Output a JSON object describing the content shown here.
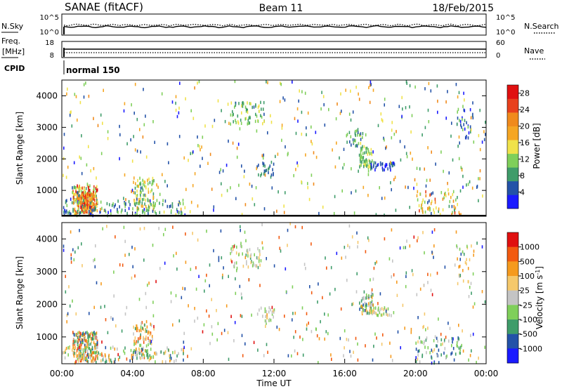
{
  "header": {
    "station": "SANAE (fitACF)",
    "beam": "Beam 11",
    "date": "18/Feb/2015"
  },
  "noise_panel": {
    "left_label": "N.Sky",
    "left_ticks": [
      "10^5",
      "10^0"
    ],
    "right_ticks": [
      "10^5",
      "10^0"
    ],
    "right_label": "N.Search"
  },
  "freq_panel": {
    "left_label_top": "Freq.",
    "left_label_unit": "[MHz]",
    "left_ticks": [
      "18",
      "8"
    ],
    "right_ticks": [
      "60",
      "0"
    ],
    "right_label": "Nave"
  },
  "cpid_panel": {
    "label": "CPID",
    "program": "normal 150"
  },
  "x_axis": {
    "ticks": [
      "00:00",
      "04:00",
      "08:00",
      "12:00",
      "16:00",
      "20:00",
      "00:00"
    ],
    "label": "Time UT"
  },
  "colors": {
    "power_scale": [
      "#1a1aff",
      "#2352a8",
      "#3f9c6a",
      "#7fcf5a",
      "#f0e24a",
      "#f5a623",
      "#f08a1c",
      "#e8401c",
      "#e01010"
    ],
    "velocity_scale": [
      "#e01010",
      "#f25a10",
      "#f59a1e",
      "#f5c86b",
      "#c4c4c4",
      "#7fcf5a",
      "#3f9c6a",
      "#2352a8",
      "#1a1aff"
    ]
  },
  "chart_data": [
    {
      "type": "heatmap",
      "title": "",
      "xlabel": "",
      "ylabel": "Slant Range [km]",
      "xlim": [
        0,
        24
      ],
      "ylim": [
        180,
        4500
      ],
      "yticks": [
        "1000",
        "2000",
        "3000",
        "4000"
      ],
      "colorbar": {
        "label": "Power [dB]",
        "ticks": [
          "4",
          "8",
          "12",
          "16",
          "20",
          "24",
          "28"
        ],
        "range": [
          0,
          30
        ]
      },
      "clusters": [
        {
          "t": [
            0.6,
            2.0
          ],
          "r": [
            250,
            1150
          ],
          "v": [
            6,
            30
          ],
          "n": 220
        },
        {
          "t": [
            1.0,
            1.8
          ],
          "r": [
            400,
            900
          ],
          "v": [
            18,
            28
          ],
          "n": 80
        },
        {
          "t": [
            4.0,
            5.2
          ],
          "r": [
            350,
            1400
          ],
          "v": [
            6,
            20
          ],
          "n": 90
        },
        {
          "t": [
            0.0,
            7.0
          ],
          "r": [
            200,
            700
          ],
          "v": [
            2,
            14
          ],
          "n": 120
        },
        {
          "t": [
            9.5,
            11.5
          ],
          "r": [
            3100,
            3800
          ],
          "v": [
            6,
            16
          ],
          "n": 60
        },
        {
          "t": [
            11.0,
            12.0
          ],
          "r": [
            1400,
            1900
          ],
          "v": [
            4,
            10
          ],
          "n": 25
        },
        {
          "t": [
            16.0,
            17.0
          ],
          "r": [
            2400,
            2950
          ],
          "v": [
            4,
            14
          ],
          "n": 30
        },
        {
          "t": [
            16.8,
            17.6
          ],
          "r": [
            1700,
            2400
          ],
          "v": [
            8,
            16
          ],
          "n": 60
        },
        {
          "t": [
            17.4,
            18.8
          ],
          "r": [
            1650,
            1900
          ],
          "v": [
            2,
            8
          ],
          "n": 40
        },
        {
          "t": [
            20.0,
            22.6
          ],
          "r": [
            200,
            1000
          ],
          "v": [
            4,
            26
          ],
          "n": 70
        },
        {
          "t": [
            22.3,
            23.3
          ],
          "r": [
            2500,
            3800
          ],
          "v": [
            2,
            12
          ],
          "n": 30
        },
        {
          "t": [
            0.0,
            24.0
          ],
          "r": [
            200,
            4500
          ],
          "v": [
            2,
            22
          ],
          "n": 420
        }
      ]
    },
    {
      "type": "heatmap",
      "title": "",
      "xlabel": "Time UT",
      "ylabel": "Slant Range [km]",
      "xlim": [
        0,
        24
      ],
      "ylim": [
        180,
        4500
      ],
      "yticks": [
        "1000",
        "2000",
        "3000",
        "4000"
      ],
      "colorbar": {
        "label": "Velocity [m s^-1]",
        "ticks": [
          "1000",
          "500",
          "100",
          "25",
          "-25",
          "-100",
          "-500",
          "-1000"
        ],
        "range": [
          -1200,
          1200
        ]
      },
      "clusters": [
        {
          "t": [
            0.6,
            2.0
          ],
          "r": [
            250,
            1150
          ],
          "v": [
            -800,
            1000
          ],
          "n": 220
        },
        {
          "t": [
            4.0,
            5.2
          ],
          "r": [
            350,
            1400
          ],
          "v": [
            -600,
            900
          ],
          "n": 90
        },
        {
          "t": [
            0.0,
            7.0
          ],
          "r": [
            200,
            700
          ],
          "v": [
            -700,
            700
          ],
          "n": 110
        },
        {
          "t": [
            9.5,
            11.5
          ],
          "r": [
            3100,
            3800
          ],
          "v": [
            -500,
            300
          ],
          "n": 55
        },
        {
          "t": [
            11.0,
            12.0
          ],
          "r": [
            1400,
            1900
          ],
          "v": [
            -300,
            300
          ],
          "n": 25
        },
        {
          "t": [
            16.8,
            17.6
          ],
          "r": [
            1700,
            2400
          ],
          "v": [
            -900,
            600
          ],
          "n": 60
        },
        {
          "t": [
            17.4,
            18.8
          ],
          "r": [
            1650,
            1900
          ],
          "v": [
            -400,
            400
          ],
          "n": 35
        },
        {
          "t": [
            20.0,
            22.6
          ],
          "r": [
            200,
            1000
          ],
          "v": [
            -1000,
            200
          ],
          "n": 70
        },
        {
          "t": [
            22.3,
            23.3
          ],
          "r": [
            2500,
            3800
          ],
          "v": [
            -300,
            600
          ],
          "n": 25
        },
        {
          "t": [
            0.0,
            24.0
          ],
          "r": [
            200,
            4500
          ],
          "v": [
            -1000,
            1000
          ],
          "n": 400
        }
      ]
    }
  ]
}
